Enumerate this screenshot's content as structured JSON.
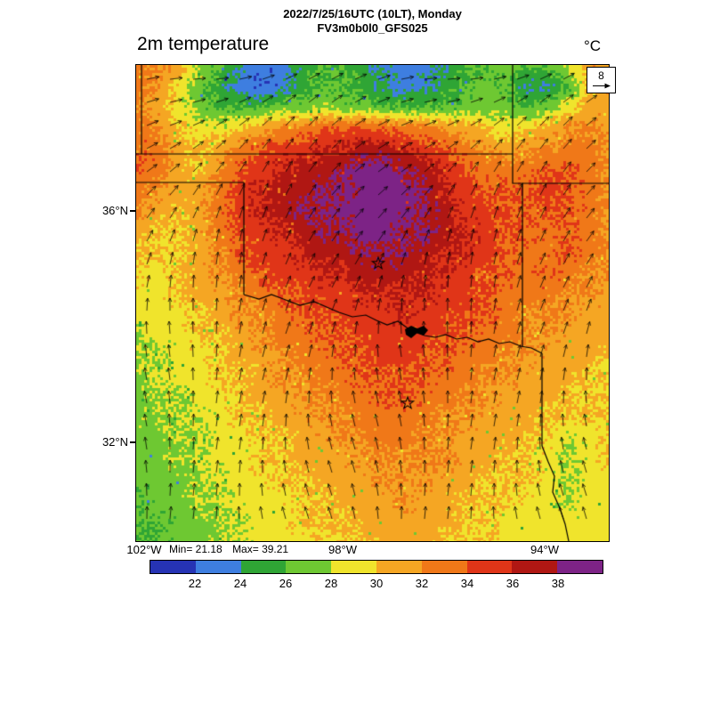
{
  "chart_data": {
    "type": "heatmap",
    "title": "2m temperature",
    "units": "°C",
    "valid_time": "2022/7/25/16UTC (10LT), Monday",
    "model": "FV3m0b0l0_GFS025",
    "stats": {
      "min": 21.18,
      "max": 39.21,
      "min_label": "Min= 21.18",
      "max_label": "Max= 39.21"
    },
    "wind_reference_label": "8",
    "x_axis": {
      "tick_labels": [
        "102°W",
        "98°W",
        "94°W"
      ]
    },
    "y_axis": {
      "tick_labels": [
        "36°N",
        "32°N"
      ]
    },
    "colorbar": {
      "bin_size_c": 2,
      "min_bin_c": 20,
      "tick_labels": [
        "22",
        "24",
        "26",
        "28",
        "30",
        "32",
        "34",
        "36",
        "38"
      ],
      "colors": [
        "#2633b4",
        "#3e7ee0",
        "#2fa535",
        "#6ec832",
        "#f0e42c",
        "#f5a623",
        "#f07818",
        "#e03518",
        "#b01713",
        "#7d2386"
      ]
    },
    "temperature_grid_c": [
      [
        33,
        32,
        31,
        28,
        26,
        24,
        23,
        23,
        25,
        26,
        26,
        25,
        24,
        23,
        23,
        24,
        26,
        26,
        27,
        26,
        26,
        28,
        31,
        32
      ],
      [
        33,
        32,
        29,
        27,
        25,
        23,
        22,
        23,
        25,
        26,
        26,
        25,
        24,
        23,
        24,
        25,
        26,
        27,
        26,
        24,
        24,
        26,
        30,
        32
      ],
      [
        32,
        31,
        29,
        27,
        26,
        26,
        26,
        27,
        27,
        28,
        27,
        27,
        26,
        26,
        26,
        26,
        27,
        27,
        27,
        26,
        27,
        29,
        31,
        31
      ],
      [
        33,
        32,
        30,
        29,
        29,
        30,
        31,
        32,
        33,
        34,
        34,
        34,
        34,
        33,
        33,
        32,
        31,
        30,
        29,
        30,
        31,
        32,
        32,
        32
      ],
      [
        34,
        33,
        31,
        30,
        31,
        33,
        34,
        35,
        35,
        36,
        36,
        37,
        37,
        36,
        35,
        34,
        33,
        32,
        31,
        32,
        32,
        33,
        33,
        32
      ],
      [
        34,
        33,
        31,
        30,
        32,
        34,
        35,
        36,
        37,
        37,
        38,
        39,
        39,
        38,
        37,
        36,
        34,
        33,
        33,
        33,
        34,
        34,
        33,
        32
      ],
      [
        33,
        32,
        31,
        31,
        33,
        35,
        36,
        37,
        37,
        38,
        38,
        39,
        39,
        39,
        38,
        36,
        35,
        34,
        34,
        34,
        35,
        34,
        33,
        32
      ],
      [
        32,
        31,
        30,
        31,
        33,
        35,
        36,
        37,
        38,
        38,
        39,
        39,
        39,
        39,
        38,
        37,
        35,
        35,
        34,
        34,
        34,
        34,
        33,
        32
      ],
      [
        31,
        30,
        30,
        31,
        33,
        34,
        35,
        36,
        37,
        38,
        38,
        39,
        39,
        38,
        38,
        37,
        36,
        35,
        34,
        34,
        33,
        34,
        33,
        32
      ],
      [
        30,
        30,
        30,
        31,
        32,
        34,
        35,
        35,
        36,
        37,
        37,
        38,
        38,
        38,
        37,
        36,
        36,
        35,
        34,
        33,
        33,
        34,
        33,
        32
      ],
      [
        30,
        29,
        30,
        31,
        32,
        33,
        34,
        35,
        35,
        36,
        36,
        37,
        37,
        37,
        36,
        36,
        35,
        34,
        34,
        33,
        34,
        33,
        32,
        32
      ],
      [
        29,
        29,
        30,
        31,
        31,
        32,
        33,
        34,
        34,
        35,
        35,
        36,
        36,
        36,
        36,
        35,
        35,
        34,
        33,
        33,
        33,
        32,
        32,
        31
      ],
      [
        29,
        29,
        29,
        30,
        31,
        32,
        32,
        33,
        34,
        34,
        35,
        35,
        35,
        36,
        35,
        35,
        34,
        34,
        33,
        32,
        32,
        32,
        31,
        31
      ],
      [
        28,
        29,
        29,
        30,
        30,
        31,
        32,
        33,
        33,
        34,
        34,
        35,
        35,
        35,
        35,
        34,
        34,
        33,
        33,
        32,
        32,
        31,
        31,
        31
      ],
      [
        28,
        28,
        29,
        29,
        30,
        31,
        31,
        32,
        33,
        33,
        34,
        34,
        35,
        35,
        34,
        34,
        33,
        33,
        32,
        32,
        31,
        31,
        31,
        30
      ],
      [
        28,
        28,
        29,
        29,
        30,
        30,
        31,
        32,
        32,
        33,
        33,
        34,
        34,
        34,
        34,
        33,
        33,
        32,
        32,
        31,
        31,
        31,
        30,
        30
      ],
      [
        27,
        28,
        28,
        29,
        29,
        30,
        31,
        31,
        32,
        32,
        33,
        33,
        34,
        34,
        33,
        33,
        32,
        32,
        31,
        31,
        31,
        30,
        30,
        30
      ],
      [
        27,
        28,
        28,
        28,
        29,
        30,
        30,
        31,
        31,
        32,
        32,
        33,
        33,
        33,
        33,
        32,
        32,
        31,
        31,
        31,
        30,
        30,
        30,
        30
      ],
      [
        27,
        27,
        28,
        28,
        29,
        29,
        30,
        30,
        31,
        31,
        32,
        32,
        33,
        33,
        32,
        32,
        31,
        31,
        31,
        30,
        30,
        28,
        29,
        30
      ],
      [
        27,
        27,
        28,
        28,
        29,
        29,
        30,
        30,
        31,
        31,
        31,
        32,
        32,
        32,
        32,
        32,
        31,
        31,
        30,
        30,
        29,
        28,
        29,
        30
      ],
      [
        27,
        27,
        27,
        28,
        28,
        29,
        29,
        30,
        30,
        31,
        31,
        31,
        32,
        32,
        32,
        31,
        31,
        30,
        30,
        30,
        29,
        28,
        29,
        29
      ],
      [
        26,
        27,
        27,
        28,
        28,
        29,
        29,
        29,
        30,
        30,
        31,
        31,
        31,
        32,
        31,
        31,
        30,
        30,
        30,
        29,
        29,
        28,
        29,
        29
      ],
      [
        26,
        26,
        27,
        27,
        28,
        28,
        29,
        29,
        30,
        30,
        30,
        31,
        31,
        31,
        31,
        31,
        30,
        30,
        29,
        29,
        29,
        29,
        29,
        29
      ],
      [
        26,
        26,
        27,
        27,
        28,
        28,
        29,
        29,
        29,
        30,
        30,
        30,
        31,
        31,
        31,
        30,
        30,
        30,
        29,
        29,
        29,
        29,
        29,
        29
      ]
    ]
  }
}
